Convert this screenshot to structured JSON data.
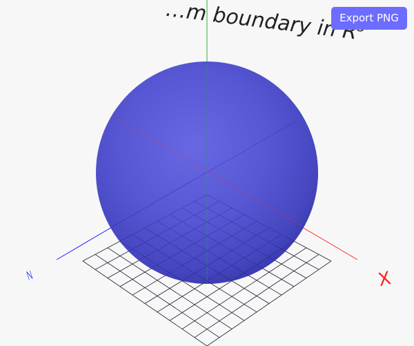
{
  "toolbar": {
    "export_label": "Export PNG"
  },
  "scene": {
    "title": "…m boundary in R",
    "title_superscript": "3",
    "axis_labels": {
      "x": "X",
      "y": "",
      "z": "Z"
    }
  },
  "colors": {
    "background": "#f7f7f7",
    "sphere": "#5a5ad8",
    "x_axis": "#ff0000",
    "y_axis": "#00a000",
    "z_axis": "#0000ff",
    "grid": "#000000",
    "button": "#6c6cff"
  }
}
